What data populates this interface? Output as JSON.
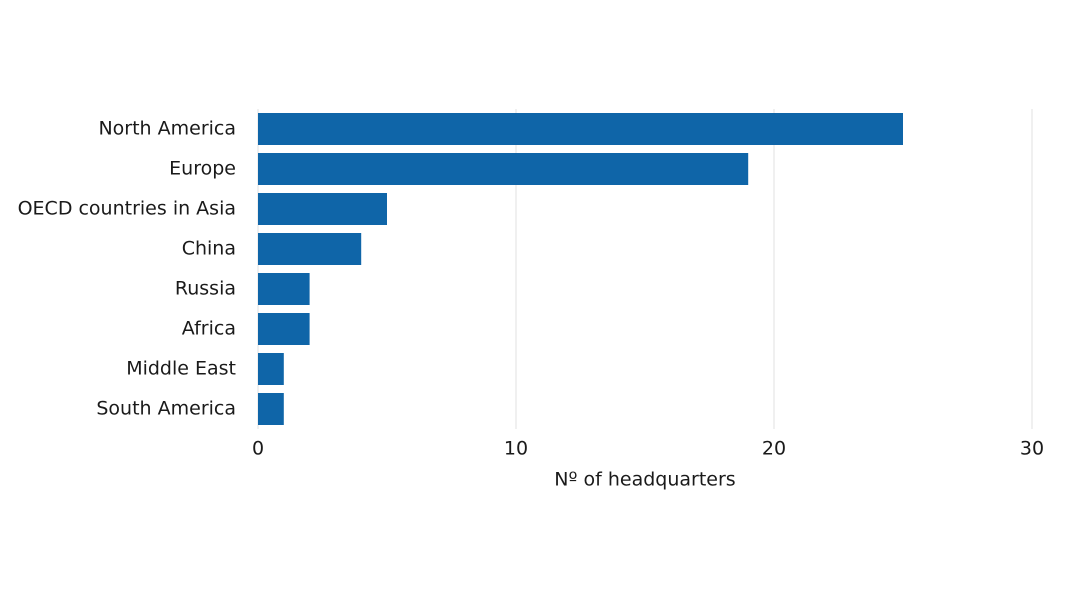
{
  "chart_data": {
    "type": "bar",
    "orientation": "horizontal",
    "x_label": "Nº of headquarters",
    "categories": [
      "North America",
      "Europe",
      "OECD countries in Asia",
      "China",
      "Russia",
      "Africa",
      "Middle East",
      "South America"
    ],
    "values": [
      25,
      19,
      5,
      4,
      2,
      2,
      1,
      1
    ],
    "color": "#0f65a8",
    "xlim": [
      0,
      30
    ],
    "xticks": [
      0,
      10,
      20,
      30
    ],
    "grid": true
  }
}
